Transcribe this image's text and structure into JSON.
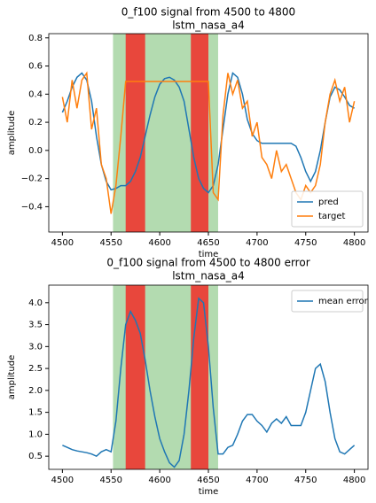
{
  "chart_data": [
    {
      "type": "line",
      "title": "0_f100 signal from 4500 to 4800",
      "subtitle": "lstm_nasa_a4",
      "x_label": "time",
      "y_label": "amplitude",
      "xlim": [
        4486,
        4814
      ],
      "xticks": [
        4500,
        4550,
        4600,
        4650,
        4700,
        4750,
        4800
      ],
      "ylim": [
        -0.58,
        0.83
      ],
      "yticks": [
        {
          "value": -0.4,
          "label": "−0.4"
        },
        {
          "value": -0.2,
          "label": "−0.2"
        },
        {
          "value": 0,
          "label": "0.0"
        },
        0.2,
        0.4,
        0.6,
        0.8
      ],
      "legend": "lower right",
      "spans": [
        {
          "start": 4552,
          "end": 4660,
          "color": "#b3dbb0"
        },
        {
          "start": 4565,
          "end": 4585,
          "color": "#e8473c"
        },
        {
          "start": 4632,
          "end": 4650,
          "color": "#e8473c"
        }
      ],
      "x": [
        4500,
        4505,
        4510,
        4515,
        4520,
        4525,
        4530,
        4535,
        4540,
        4545,
        4550,
        4555,
        4560,
        4565,
        4570,
        4575,
        4580,
        4585,
        4590,
        4595,
        4600,
        4605,
        4610,
        4615,
        4620,
        4625,
        4630,
        4635,
        4640,
        4645,
        4650,
        4655,
        4660,
        4665,
        4670,
        4675,
        4680,
        4685,
        4690,
        4695,
        4700,
        4705,
        4710,
        4715,
        4720,
        4725,
        4730,
        4735,
        4740,
        4745,
        4750,
        4755,
        4760,
        4765,
        4770,
        4775,
        4780,
        4785,
        4790,
        4795,
        4800
      ],
      "series": [
        {
          "name": "pred",
          "color": "#1f77b4",
          "values": [
            0.27,
            0.35,
            0.45,
            0.52,
            0.55,
            0.5,
            0.35,
            0.1,
            -0.1,
            -0.22,
            -0.28,
            -0.27,
            -0.25,
            -0.25,
            -0.22,
            -0.15,
            -0.05,
            0.1,
            0.25,
            0.38,
            0.47,
            0.51,
            0.52,
            0.5,
            0.45,
            0.35,
            0.15,
            -0.05,
            -0.2,
            -0.27,
            -0.3,
            -0.25,
            -0.1,
            0.15,
            0.4,
            0.55,
            0.52,
            0.4,
            0.22,
            0.12,
            0.07,
            0.05,
            0.05,
            0.05,
            0.05,
            0.05,
            0.05,
            0.05,
            0.03,
            -0.05,
            -0.15,
            -0.22,
            -0.15,
            0,
            0.2,
            0.38,
            0.45,
            0.43,
            0.38,
            0.32,
            0.3
          ]
        },
        {
          "name": "target",
          "color": "#ff7f0e",
          "values": [
            0.38,
            0.2,
            0.5,
            0.3,
            0.5,
            0.55,
            0.15,
            0.3,
            -0.1,
            -0.2,
            -0.45,
            -0.25,
            0.1,
            0.49,
            0.49,
            0.49,
            0.49,
            0.49,
            0.49,
            0.49,
            0.49,
            0.49,
            0.49,
            0.49,
            0.49,
            0.49,
            0.49,
            0.49,
            0.49,
            0.49,
            0.49,
            -0.3,
            -0.35,
            0.25,
            0.55,
            0.4,
            0.5,
            0.3,
            0.35,
            0.1,
            0.2,
            -0.05,
            -0.1,
            -0.2,
            0,
            -0.15,
            -0.1,
            -0.2,
            -0.3,
            -0.35,
            -0.25,
            -0.3,
            -0.25,
            -0.1,
            0.2,
            0.4,
            0.5,
            0.35,
            0.45,
            0.2,
            0.35
          ]
        }
      ]
    },
    {
      "type": "line",
      "title": "0_f100 signal from 4500 to 4800  error",
      "subtitle": "lstm_nasa_a4",
      "x_label": "time",
      "y_label": "amplitude",
      "xlim": [
        4486,
        4814
      ],
      "xticks": [
        4500,
        4550,
        4600,
        4650,
        4700,
        4750,
        4800
      ],
      "ylim": [
        0.2,
        4.4
      ],
      "yticks": [
        0.5,
        {
          "value": 1,
          "label": "1.0"
        },
        1.5,
        {
          "value": 2,
          "label": "2.0"
        },
        2.5,
        {
          "value": 3,
          "label": "3.0"
        },
        3.5,
        {
          "value": 4,
          "label": "4.0"
        }
      ],
      "legend": "upper right",
      "spans": [
        {
          "start": 4552,
          "end": 4660,
          "color": "#b3dbb0"
        },
        {
          "start": 4565,
          "end": 4585,
          "color": "#e8473c"
        },
        {
          "start": 4632,
          "end": 4650,
          "color": "#e8473c"
        }
      ],
      "x": [
        4500,
        4505,
        4510,
        4515,
        4520,
        4525,
        4530,
        4535,
        4540,
        4545,
        4550,
        4555,
        4560,
        4565,
        4570,
        4575,
        4580,
        4585,
        4590,
        4595,
        4600,
        4605,
        4610,
        4615,
        4620,
        4625,
        4630,
        4635,
        4640,
        4645,
        4650,
        4655,
        4660,
        4665,
        4670,
        4675,
        4680,
        4685,
        4690,
        4695,
        4700,
        4705,
        4710,
        4715,
        4720,
        4725,
        4730,
        4735,
        4740,
        4745,
        4750,
        4755,
        4760,
        4765,
        4770,
        4775,
        4780,
        4785,
        4790,
        4795,
        4800
      ],
      "series": [
        {
          "name": "mean error",
          "color": "#1f77b4",
          "values": [
            0.75,
            0.7,
            0.65,
            0.62,
            0.6,
            0.58,
            0.55,
            0.5,
            0.6,
            0.65,
            0.6,
            1.3,
            2.5,
            3.5,
            3.8,
            3.6,
            3.3,
            2.7,
            2,
            1.4,
            0.9,
            0.6,
            0.35,
            0.25,
            0.4,
            1,
            2,
            3.2,
            4.1,
            4,
            3,
            1.6,
            0.55,
            0.55,
            0.7,
            0.75,
            1,
            1.3,
            1.45,
            1.45,
            1.3,
            1.2,
            1.05,
            1.25,
            1.35,
            1.25,
            1.4,
            1.2,
            1.2,
            1.2,
            1.5,
            2,
            2.5,
            2.6,
            2.2,
            1.5,
            0.9,
            0.6,
            0.55,
            0.65,
            0.75
          ]
        }
      ]
    }
  ]
}
